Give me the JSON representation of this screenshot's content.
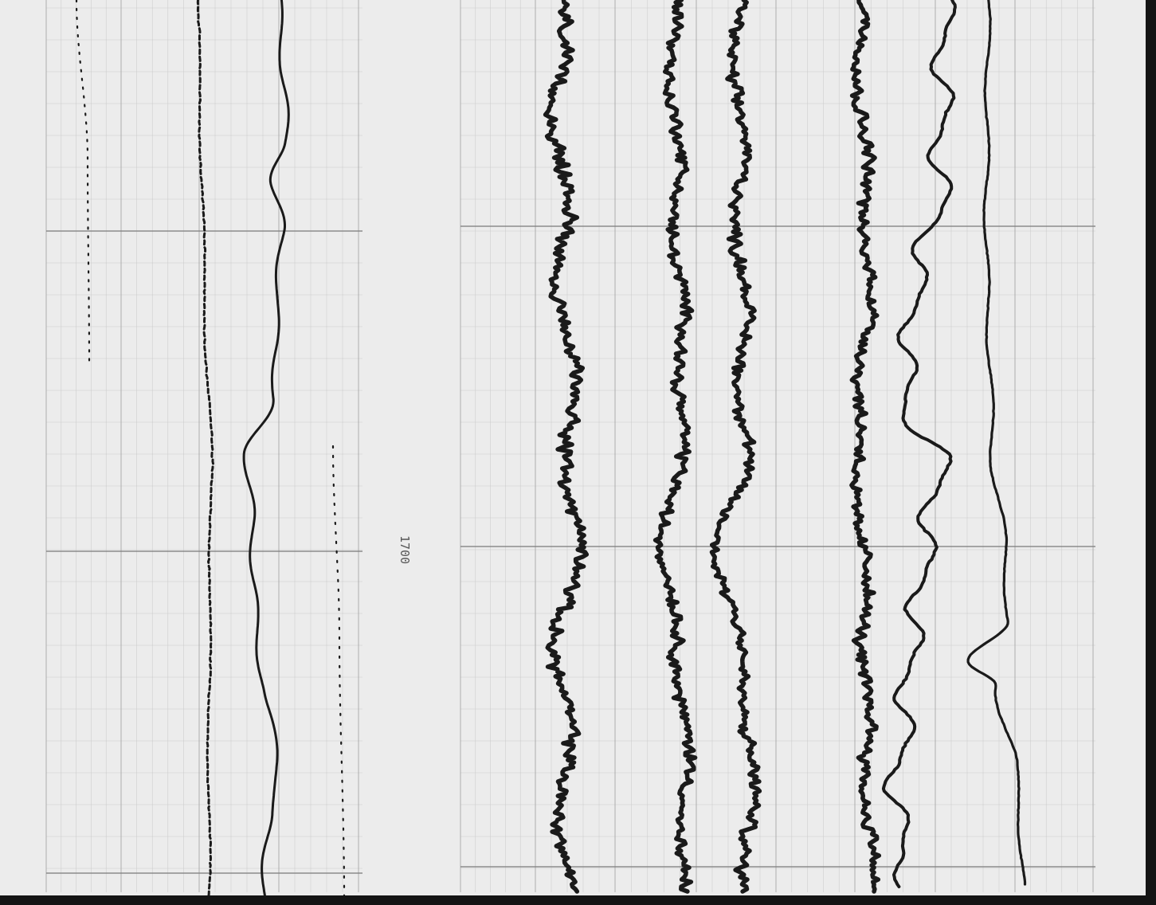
{
  "record": {
    "time_label": "1700"
  },
  "colors": {
    "paper": "#ececec",
    "grid_major": "#7a7a7a",
    "grid_minor": "#c9c9c9",
    "trace": "#1a1a1a",
    "edge": "#141414"
  },
  "chart_data": {
    "type": "line",
    "orientation": "vertical-time",
    "annotations": [
      "1700"
    ],
    "panels": [
      {
        "name": "",
        "traces": [
          {
            "style": "dotted",
            "character": "smooth"
          },
          {
            "style": "dashed",
            "character": "smooth"
          },
          {
            "style": "solid",
            "character": "smooth"
          },
          {
            "style": "dotted",
            "character": "smooth"
          }
        ]
      },
      {
        "name": "",
        "traces": [
          {
            "style": "solid",
            "character": "noisy"
          },
          {
            "style": "solid",
            "character": "noisy"
          },
          {
            "style": "solid",
            "character": "noisy"
          },
          {
            "style": "solid",
            "character": "noisy"
          },
          {
            "style": "solid",
            "character": "wavy"
          },
          {
            "style": "solid",
            "character": "smooth"
          }
        ]
      }
    ]
  }
}
